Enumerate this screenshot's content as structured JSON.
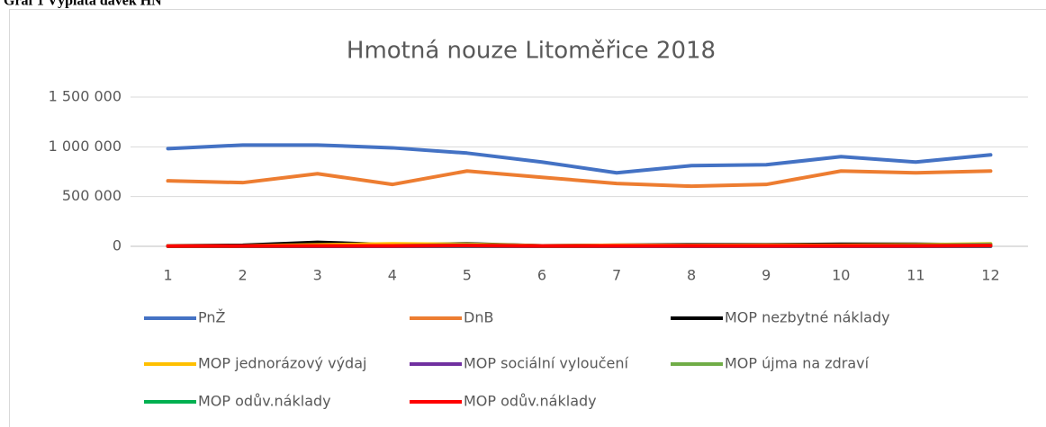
{
  "caption": "Graf 1 Výplata dávek HN",
  "chart_data": {
    "type": "line",
    "title": "Hmotná nouze Litoměřice 2018",
    "categories": [
      "1",
      "2",
      "3",
      "4",
      "5",
      "6",
      "7",
      "8",
      "9",
      "10",
      "11",
      "12"
    ],
    "ylim": [
      0,
      1500000
    ],
    "yticks": [
      0,
      {
        "value": 500000,
        "label": "500 000"
      },
      {
        "value": 1000000,
        "label": "1 000 000"
      },
      {
        "value": 1500000,
        "label": "1 500 000"
      }
    ],
    "grid": true,
    "series": [
      {
        "name": "PnŽ",
        "color": "#4472c4",
        "values": [
          982000,
          1018000,
          1018000,
          990000,
          937000,
          847000,
          739000,
          811000,
          820000,
          901000,
          847000,
          919000
        ]
      },
      {
        "name": "DnB",
        "color": "#ed7d31",
        "values": [
          658000,
          640000,
          730000,
          622000,
          757000,
          694000,
          631000,
          604000,
          622000,
          757000,
          739000,
          757000
        ]
      },
      {
        "name": "MOP nezbytné náklady",
        "color": "#000000",
        "values": [
          5000,
          10000,
          40000,
          15000,
          25000,
          5000,
          10000,
          15000,
          15000,
          20000,
          20000,
          15000
        ]
      },
      {
        "name": "MOP jednorázový výdaj",
        "color": "#ffc000",
        "values": [
          3000,
          5000,
          15000,
          25000,
          20000,
          5000,
          10000,
          8000,
          10000,
          10000,
          15000,
          25000
        ]
      },
      {
        "name": "MOP sociální vyloučení",
        "color": "#7030a0",
        "values": [
          0,
          0,
          0,
          0,
          0,
          0,
          0,
          0,
          0,
          0,
          0,
          0
        ]
      },
      {
        "name": "MOP újma na zdraví",
        "color": "#70ad47",
        "values": [
          2000,
          3000,
          5000,
          5000,
          15000,
          3000,
          5000,
          5000,
          5000,
          5000,
          10000,
          20000
        ]
      },
      {
        "name": "MOP odův.náklady",
        "color": "#00b050",
        "values": [
          1000,
          2000,
          3000,
          3000,
          5000,
          2000,
          3000,
          3000,
          3000,
          3000,
          3000,
          5000
        ]
      },
      {
        "name": "MOP odův.náklady",
        "color": "#ff0000",
        "values": [
          2000,
          3000,
          5000,
          5000,
          8000,
          3000,
          5000,
          5000,
          5000,
          5000,
          5000,
          8000
        ]
      }
    ]
  }
}
